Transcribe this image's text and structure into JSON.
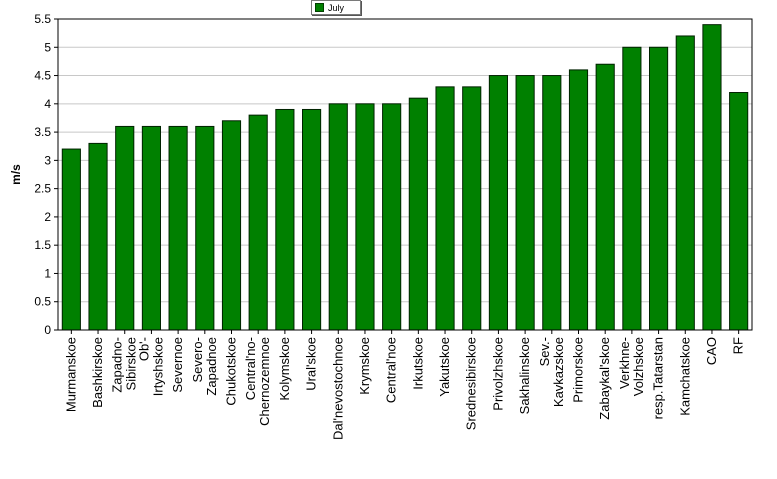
{
  "chart_data": {
    "type": "bar",
    "title": "",
    "xlabel": "",
    "ylabel": "m/s",
    "ylim": [
      0,
      5.5
    ],
    "yticks": [
      "0",
      "0.5",
      "1",
      "1.5",
      "2",
      "2.5",
      "3",
      "3.5",
      "4",
      "4.5",
      "5",
      "5.5"
    ],
    "grid": true,
    "legend_position": "top-center",
    "bar_color": "#008000",
    "categories": [
      [
        "Murmanskoe"
      ],
      [
        "Bashkirskoe"
      ],
      [
        "Zapadno-",
        "Sibirskoe"
      ],
      [
        "Ob'-",
        "Irtyshskoe"
      ],
      [
        "Severnoe"
      ],
      [
        "Severo-",
        "Zapadnoe"
      ],
      [
        "Chukotskoe"
      ],
      [
        "Central'no-",
        "Chernozemnoe"
      ],
      [
        "Kolymskoe"
      ],
      [
        "Ural'skoe"
      ],
      [
        "Dal'nevostochnoe"
      ],
      [
        "Krymskoe"
      ],
      [
        "Central'noe"
      ],
      [
        "Irkutskoe"
      ],
      [
        "Yakutskoe"
      ],
      [
        "Srednesibirskoe"
      ],
      [
        "Privolzhskoe"
      ],
      [
        "Sakhalinskoe"
      ],
      [
        "Sev.-",
        "Kavkazskoe"
      ],
      [
        "Primorskoe"
      ],
      [
        "Zabaykal'skoe"
      ],
      [
        "Verkhne-",
        "Volzhskoe"
      ],
      [
        "resp.Tatarstan"
      ],
      [
        "Kamchatskoe"
      ],
      [
        "CAO"
      ],
      [
        "RF"
      ]
    ],
    "series": [
      {
        "name": "July",
        "values": [
          3.2,
          3.3,
          3.6,
          3.6,
          3.6,
          3.6,
          3.7,
          3.8,
          3.9,
          3.9,
          4.0,
          4.0,
          4.0,
          4.1,
          4.3,
          4.3,
          4.5,
          4.5,
          4.5,
          4.6,
          4.7,
          5.0,
          5.0,
          5.2,
          5.4,
          4.2
        ]
      }
    ]
  }
}
